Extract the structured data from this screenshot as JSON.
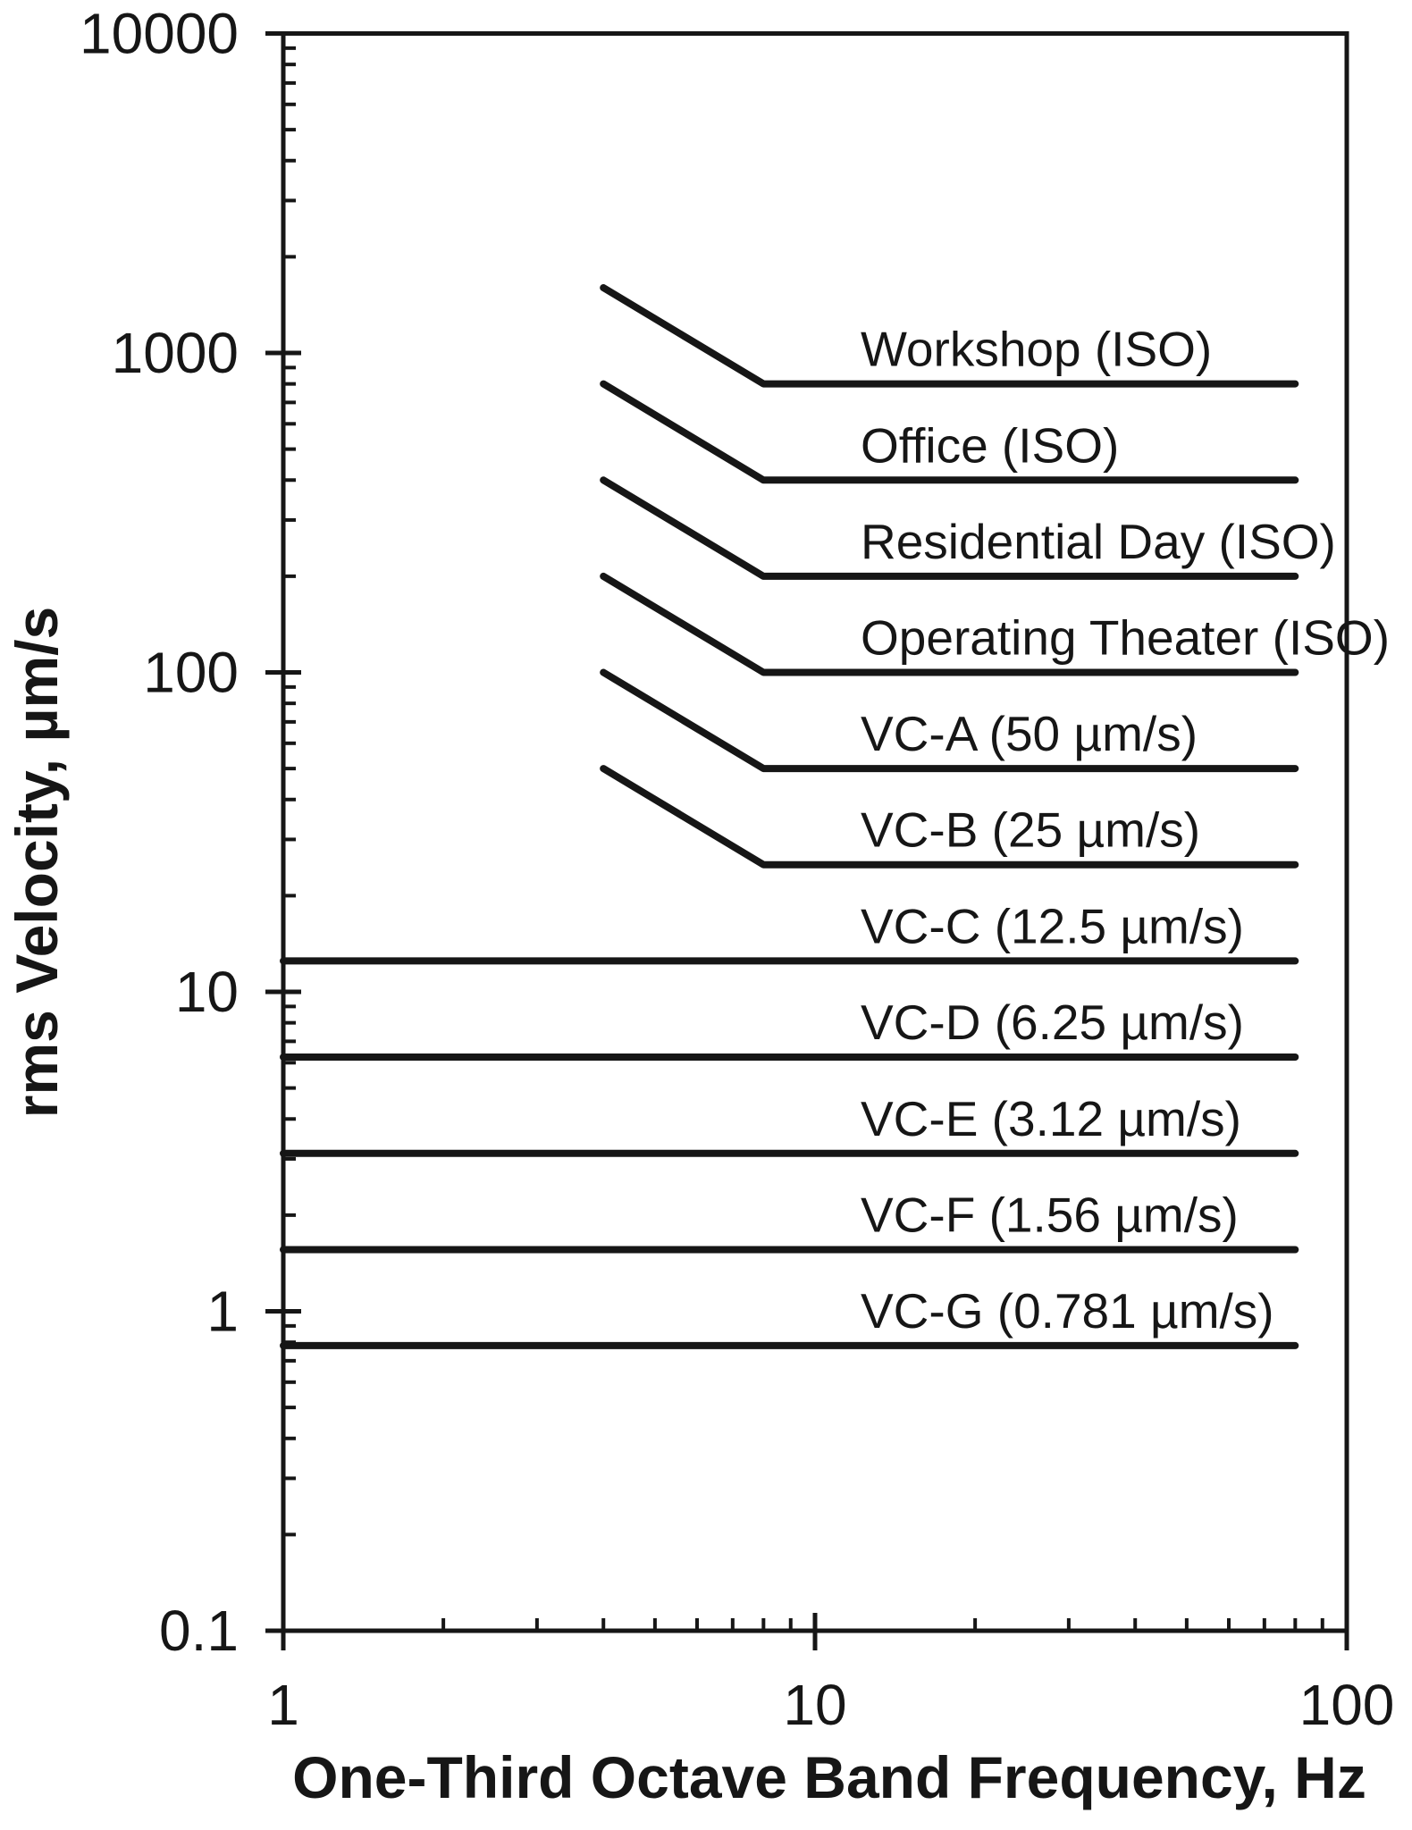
{
  "figure": {
    "background": "#ffffff",
    "ink_color": "#161616"
  },
  "chart_data": {
    "type": "line",
    "title": "",
    "xlabel": "One-Third Octave Band Frequency, Hz",
    "ylabel": "rms Velocity, µm/s",
    "x_scale": "log",
    "y_scale": "log",
    "xlim": [
      1,
      100
    ],
    "ylim": [
      0.1,
      10000
    ],
    "x_major_ticks": [
      1,
      10,
      100
    ],
    "y_major_ticks": [
      10000,
      1000,
      100,
      10,
      1,
      0.1
    ],
    "grid": false,
    "legend": "inline-labels-right-of-curves",
    "frame": "full-box",
    "series": [
      {
        "name": "workshop-iso",
        "label": "Workshop (ISO)",
        "flat_level_um_s": 800,
        "points": [
          [
            4,
            1600
          ],
          [
            8,
            800
          ],
          [
            80,
            800
          ]
        ]
      },
      {
        "name": "office-iso",
        "label": "Office (ISO)",
        "flat_level_um_s": 400,
        "points": [
          [
            4,
            800
          ],
          [
            8,
            400
          ],
          [
            80,
            400
          ]
        ]
      },
      {
        "name": "residential-day-iso",
        "label": "Residential Day (ISO)",
        "flat_level_um_s": 200,
        "points": [
          [
            4,
            400
          ],
          [
            8,
            200
          ],
          [
            80,
            200
          ]
        ]
      },
      {
        "name": "operating-theater-iso",
        "label": "Operating Theater (ISO)",
        "flat_level_um_s": 100,
        "points": [
          [
            4,
            200
          ],
          [
            8,
            100
          ],
          [
            80,
            100
          ]
        ]
      },
      {
        "name": "vc-a",
        "label": "VC-A (50 µm/s)",
        "flat_level_um_s": 50,
        "points": [
          [
            4,
            100
          ],
          [
            8,
            50
          ],
          [
            80,
            50
          ]
        ]
      },
      {
        "name": "vc-b",
        "label": "VC-B (25 µm/s)",
        "flat_level_um_s": 25,
        "points": [
          [
            4,
            50
          ],
          [
            8,
            25
          ],
          [
            80,
            25
          ]
        ]
      },
      {
        "name": "vc-c",
        "label": "VC-C (12.5 µm/s)",
        "flat_level_um_s": 12.5,
        "points": [
          [
            1,
            12.5
          ],
          [
            80,
            12.5
          ]
        ]
      },
      {
        "name": "vc-d",
        "label": "VC-D (6.25 µm/s)",
        "flat_level_um_s": 6.25,
        "points": [
          [
            1,
            6.25
          ],
          [
            80,
            6.25
          ]
        ]
      },
      {
        "name": "vc-e",
        "label": "VC-E (3.12 µm/s)",
        "flat_level_um_s": 3.12,
        "points": [
          [
            1,
            3.12
          ],
          [
            80,
            3.12
          ]
        ]
      },
      {
        "name": "vc-f",
        "label": "VC-F (1.56 µm/s)",
        "flat_level_um_s": 1.56,
        "points": [
          [
            1,
            1.56
          ],
          [
            80,
            1.56
          ]
        ]
      },
      {
        "name": "vc-g",
        "label": "VC-G (0.781 µm/s)",
        "flat_level_um_s": 0.781,
        "points": [
          [
            1,
            0.781
          ],
          [
            80,
            0.781
          ]
        ]
      }
    ]
  }
}
